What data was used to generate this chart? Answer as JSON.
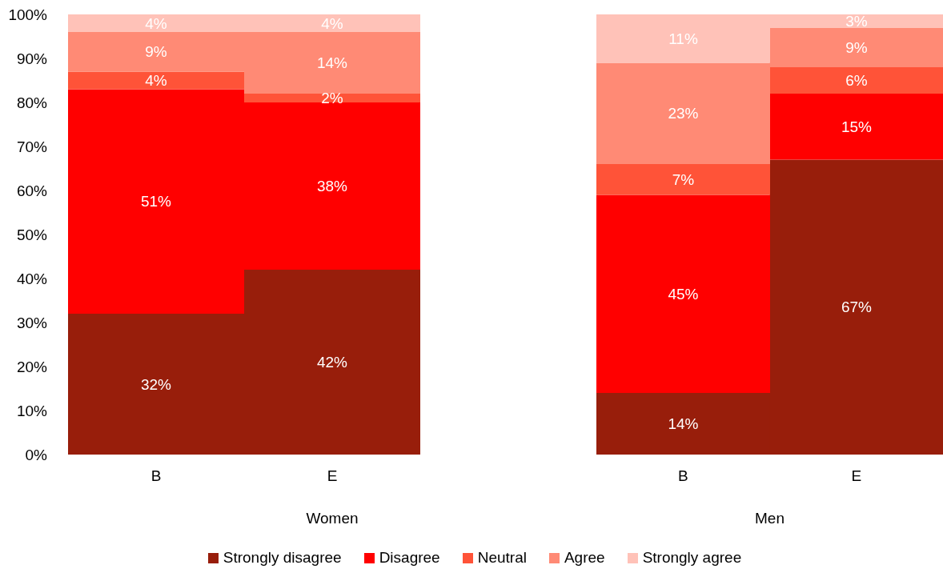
{
  "chart_data": [
    {
      "type": "bar",
      "stacked": true,
      "xlabel": "Women",
      "categories": [
        "B",
        "E",
        null
      ],
      "ylim": [
        0,
        100
      ],
      "yticks": [
        {
          "value": 0,
          "label": "0%"
        },
        {
          "value": 10,
          "label": "10%"
        },
        {
          "value": 20,
          "label": "20%"
        },
        {
          "value": 30,
          "label": "30%"
        },
        {
          "value": 40,
          "label": "40%"
        },
        {
          "value": 50,
          "label": "50%"
        },
        {
          "value": 60,
          "label": "60%"
        },
        {
          "value": 70,
          "label": "70%"
        },
        {
          "value": 80,
          "label": "80%"
        },
        {
          "value": 90,
          "label": "90%"
        },
        {
          "value": 100,
          "label": "100%"
        }
      ],
      "grid": false,
      "legend": "bottom",
      "series": [
        {
          "name": "Strongly disagree",
          "color": "#981e0b",
          "values": [
            32,
            42,
            null
          ],
          "value_labels": [
            "32%",
            "42%",
            null
          ]
        },
        {
          "name": "Disagree",
          "color": "#ff0000",
          "values": [
            51,
            38,
            null
          ],
          "value_labels": [
            "51%",
            "38%",
            null
          ]
        },
        {
          "name": "Neutral",
          "color": "#ff5338",
          "values": [
            4,
            2,
            null
          ],
          "value_labels": [
            "4%",
            "2%",
            null
          ]
        },
        {
          "name": "Agree",
          "color": "#ff8a75",
          "values": [
            9,
            14,
            null
          ],
          "value_labels": [
            "9%",
            "14%",
            null
          ]
        },
        {
          "name": "Strongly agree",
          "color": "#ffc2b8",
          "values": [
            4,
            4,
            null
          ],
          "value_labels": [
            "4%",
            "4%",
            null
          ]
        }
      ]
    },
    {
      "type": "bar",
      "stacked": true,
      "xlabel": "Men",
      "categories": [
        "B",
        "E"
      ],
      "ylim": [
        0,
        100
      ],
      "grid": false,
      "tick_labels": "x",
      "series": [
        {
          "color": "#981e0b",
          "values": [
            14,
            67
          ],
          "value_labels": [
            "14%",
            "67%"
          ]
        },
        {
          "color": "#ff0000",
          "values": [
            45,
            15
          ],
          "value_labels": [
            "45%",
            "15%"
          ]
        },
        {
          "color": "#ff5338",
          "values": [
            7,
            6
          ],
          "value_labels": [
            "7%",
            "6%"
          ]
        },
        {
          "color": "#ff8a75",
          "values": [
            23,
            9
          ],
          "value_labels": [
            "23%",
            "9%"
          ]
        },
        {
          "color": "#ffc2b8",
          "values": [
            11,
            3
          ],
          "value_labels": [
            "11%",
            "3%"
          ]
        }
      ]
    }
  ]
}
